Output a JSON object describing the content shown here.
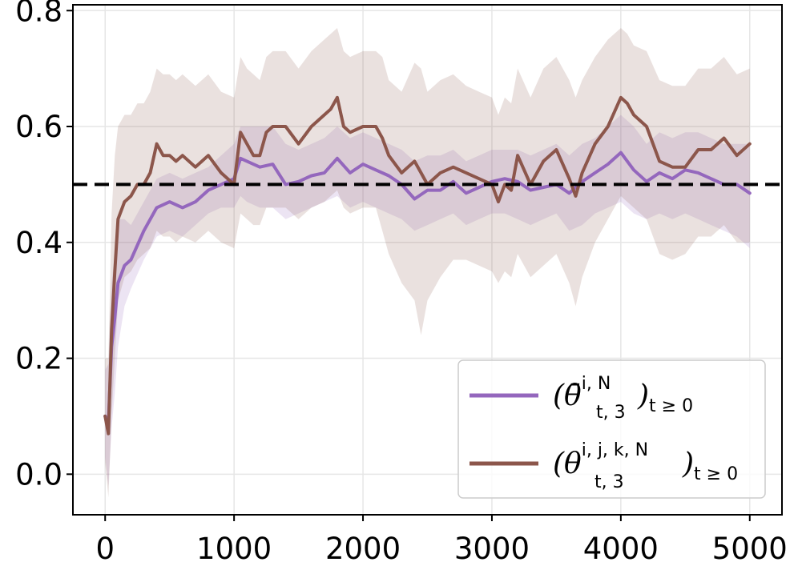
{
  "chart_data": {
    "type": "line",
    "title": "",
    "xlabel": "",
    "ylabel": "",
    "xlim": [
      -250,
      5250
    ],
    "ylim": [
      -0.07,
      0.81
    ],
    "grid": true,
    "x_ticks": [
      0,
      1000,
      2000,
      3000,
      4000,
      5000
    ],
    "x_tick_labels": [
      "0",
      "1000",
      "2000",
      "3000",
      "4000",
      "5000"
    ],
    "y_ticks": [
      0.0,
      0.2,
      0.4,
      0.6,
      0.8
    ],
    "y_tick_labels": [
      "0.0",
      "0.2",
      "0.4",
      "0.6",
      "0.8"
    ],
    "reference_line": {
      "y": 0.5,
      "style": "dashed",
      "color": "#000000"
    },
    "legend": {
      "placement": "lower-right"
    },
    "series": [
      {
        "name": "mean-theta",
        "legend_main": "(θ̄",
        "legend_sup": "i, N",
        "legend_sub": "t, 3",
        "legend_close": ")",
        "legend_subscript": "t ≥ 0",
        "color": "#9467bd",
        "band_color": "#9467bd",
        "x": [
          0,
          25,
          50,
          75,
          100,
          150,
          200,
          300,
          400,
          500,
          600,
          700,
          800,
          900,
          1000,
          1050,
          1100,
          1200,
          1300,
          1400,
          1500,
          1600,
          1700,
          1800,
          1900,
          2000,
          2100,
          2200,
          2300,
          2400,
          2500,
          2600,
          2700,
          2800,
          2900,
          3000,
          3100,
          3200,
          3300,
          3400,
          3500,
          3600,
          3700,
          3800,
          3900,
          4000,
          4100,
          4200,
          4300,
          4400,
          4500,
          4600,
          4700,
          4800,
          4900,
          5000
        ],
        "values": [
          0.1,
          0.09,
          0.22,
          0.27,
          0.33,
          0.36,
          0.37,
          0.42,
          0.46,
          0.47,
          0.46,
          0.47,
          0.49,
          0.5,
          0.51,
          0.545,
          0.54,
          0.53,
          0.535,
          0.5,
          0.505,
          0.515,
          0.52,
          0.545,
          0.52,
          0.535,
          0.525,
          0.515,
          0.5,
          0.475,
          0.49,
          0.49,
          0.505,
          0.485,
          0.495,
          0.505,
          0.51,
          0.505,
          0.49,
          0.495,
          0.5,
          0.485,
          0.505,
          0.52,
          0.535,
          0.555,
          0.525,
          0.505,
          0.52,
          0.51,
          0.525,
          0.52,
          0.51,
          0.5,
          0.5,
          0.485
        ],
        "lower": [
          0.03,
          -0.02,
          0.08,
          0.14,
          0.22,
          0.29,
          0.32,
          0.37,
          0.41,
          0.42,
          0.41,
          0.43,
          0.45,
          0.46,
          0.46,
          0.48,
          0.47,
          0.46,
          0.46,
          0.44,
          0.45,
          0.46,
          0.47,
          0.48,
          0.46,
          0.47,
          0.46,
          0.45,
          0.44,
          0.42,
          0.43,
          0.44,
          0.45,
          0.43,
          0.44,
          0.45,
          0.45,
          0.44,
          0.43,
          0.44,
          0.45,
          0.42,
          0.43,
          0.45,
          0.46,
          0.47,
          0.45,
          0.44,
          0.45,
          0.44,
          0.45,
          0.44,
          0.43,
          0.42,
          0.41,
          0.39
        ],
        "upper": [
          0.18,
          0.19,
          0.33,
          0.38,
          0.44,
          0.44,
          0.43,
          0.47,
          0.51,
          0.52,
          0.51,
          0.52,
          0.53,
          0.55,
          0.57,
          0.6,
          0.6,
          0.6,
          0.6,
          0.57,
          0.56,
          0.57,
          0.58,
          0.6,
          0.58,
          0.59,
          0.58,
          0.57,
          0.56,
          0.54,
          0.55,
          0.55,
          0.56,
          0.54,
          0.55,
          0.56,
          0.56,
          0.56,
          0.55,
          0.56,
          0.57,
          0.55,
          0.57,
          0.58,
          0.6,
          0.62,
          0.6,
          0.57,
          0.59,
          0.58,
          0.59,
          0.59,
          0.58,
          0.57,
          0.57,
          0.57
        ]
      },
      {
        "name": "single-theta",
        "legend_main": "(θ",
        "legend_sup": "i, j, k, N",
        "legend_sub": "t, 3",
        "legend_close": ")",
        "legend_subscript": "t ≥ 0",
        "color": "#8c564b",
        "band_color": "#8c564b",
        "x": [
          0,
          25,
          50,
          75,
          100,
          150,
          200,
          250,
          300,
          350,
          400,
          450,
          500,
          550,
          600,
          700,
          800,
          900,
          1000,
          1050,
          1100,
          1150,
          1200,
          1250,
          1300,
          1400,
          1500,
          1600,
          1700,
          1750,
          1800,
          1850,
          1900,
          2000,
          2100,
          2150,
          2200,
          2300,
          2400,
          2450,
          2500,
          2600,
          2700,
          2800,
          2900,
          3000,
          3050,
          3100,
          3150,
          3200,
          3300,
          3400,
          3500,
          3600,
          3650,
          3700,
          3800,
          3900,
          4000,
          4050,
          4100,
          4200,
          4300,
          4400,
          4500,
          4600,
          4700,
          4800,
          4900,
          5000
        ],
        "values": [
          0.1,
          0.07,
          0.25,
          0.35,
          0.44,
          0.47,
          0.48,
          0.5,
          0.5,
          0.52,
          0.57,
          0.55,
          0.55,
          0.54,
          0.55,
          0.53,
          0.55,
          0.52,
          0.5,
          0.59,
          0.57,
          0.55,
          0.55,
          0.59,
          0.6,
          0.6,
          0.57,
          0.6,
          0.62,
          0.63,
          0.65,
          0.6,
          0.59,
          0.6,
          0.6,
          0.58,
          0.55,
          0.52,
          0.54,
          0.52,
          0.5,
          0.52,
          0.53,
          0.52,
          0.51,
          0.5,
          0.47,
          0.5,
          0.49,
          0.55,
          0.5,
          0.54,
          0.56,
          0.51,
          0.48,
          0.52,
          0.57,
          0.6,
          0.65,
          0.64,
          0.62,
          0.6,
          0.54,
          0.53,
          0.53,
          0.56,
          0.56,
          0.58,
          0.55,
          0.57
        ],
        "lower": [
          0.02,
          -0.04,
          0.1,
          0.2,
          0.3,
          0.34,
          0.35,
          0.37,
          0.38,
          0.39,
          0.42,
          0.41,
          0.41,
          0.4,
          0.41,
          0.4,
          0.42,
          0.4,
          0.39,
          0.45,
          0.44,
          0.43,
          0.43,
          0.46,
          0.46,
          0.46,
          0.44,
          0.46,
          0.47,
          0.48,
          0.49,
          0.46,
          0.45,
          0.46,
          0.46,
          0.42,
          0.38,
          0.33,
          0.3,
          0.24,
          0.3,
          0.34,
          0.37,
          0.37,
          0.36,
          0.35,
          0.33,
          0.35,
          0.34,
          0.38,
          0.34,
          0.36,
          0.38,
          0.33,
          0.29,
          0.34,
          0.4,
          0.44,
          0.48,
          0.47,
          0.46,
          0.44,
          0.38,
          0.37,
          0.38,
          0.41,
          0.41,
          0.43,
          0.4,
          0.4
        ],
        "upper": [
          0.2,
          0.2,
          0.45,
          0.55,
          0.6,
          0.62,
          0.62,
          0.64,
          0.64,
          0.66,
          0.7,
          0.69,
          0.69,
          0.68,
          0.69,
          0.67,
          0.69,
          0.66,
          0.65,
          0.72,
          0.7,
          0.69,
          0.68,
          0.72,
          0.73,
          0.73,
          0.7,
          0.73,
          0.75,
          0.76,
          0.77,
          0.73,
          0.72,
          0.73,
          0.73,
          0.72,
          0.68,
          0.66,
          0.71,
          0.7,
          0.66,
          0.68,
          0.69,
          0.67,
          0.66,
          0.65,
          0.62,
          0.65,
          0.64,
          0.7,
          0.65,
          0.7,
          0.72,
          0.68,
          0.65,
          0.68,
          0.72,
          0.75,
          0.77,
          0.76,
          0.74,
          0.73,
          0.68,
          0.67,
          0.67,
          0.7,
          0.7,
          0.72,
          0.69,
          0.7
        ]
      }
    ]
  }
}
